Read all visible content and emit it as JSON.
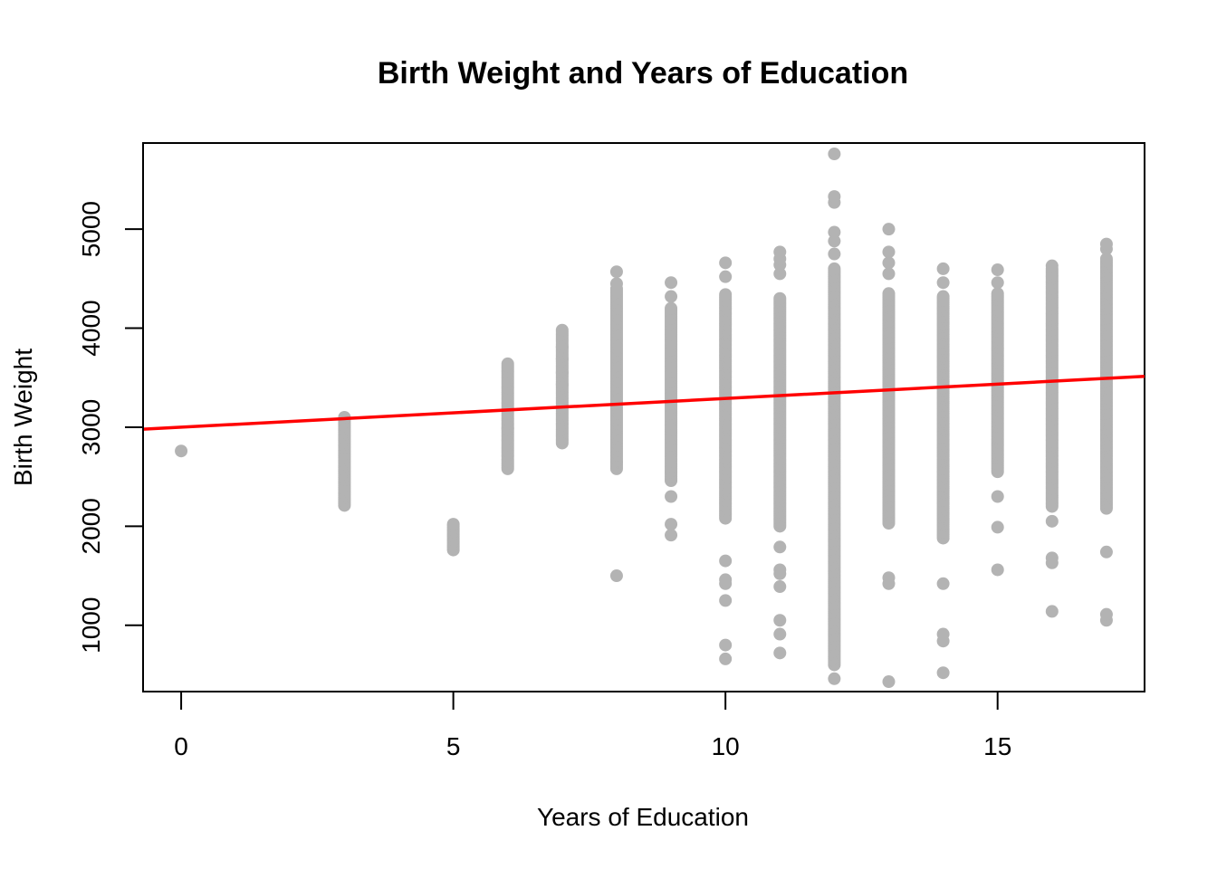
{
  "chart_data": {
    "type": "scatter",
    "title": "Birth Weight and Years of Education",
    "xlabel": "Years of Education",
    "ylabel": "Birth Weight",
    "xlim": [
      -0.7,
      17.7
    ],
    "ylim": [
      330,
      5870
    ],
    "x_ticks": [
      0,
      5,
      10,
      15
    ],
    "x_tick_labels": [
      "0",
      "5",
      "10",
      "15"
    ],
    "y_ticks": [
      1000,
      2000,
      3000,
      4000,
      5000
    ],
    "y_tick_labels": [
      "1000",
      "2000",
      "3000",
      "4000",
      "5000"
    ],
    "point_color": "#b3b3b3",
    "line_color": "#ff0000",
    "regression_line": {
      "intercept": 3000,
      "slope": 29
    },
    "columns": [
      {
        "x": 0,
        "low": 2760,
        "high": 2760,
        "extra": []
      },
      {
        "x": 3,
        "low": 2210,
        "high": 3100,
        "extra": [
          2210,
          3100
        ]
      },
      {
        "x": 5,
        "low": 1760,
        "high": 2020,
        "extra": [
          1760,
          2020
        ]
      },
      {
        "x": 6,
        "low": 2580,
        "high": 3640,
        "extra": [
          2580,
          2990,
          3640
        ]
      },
      {
        "x": 7,
        "low": 2840,
        "high": 3980,
        "extra": [
          2840,
          3080,
          3240,
          3430,
          3550,
          3690,
          3810,
          3980
        ]
      },
      {
        "x": 8,
        "low": 2580,
        "high": 4400,
        "extra": [
          1500,
          2580,
          2650,
          2720,
          4450,
          4570
        ]
      },
      {
        "x": 9,
        "low": 2460,
        "high": 4200,
        "extra": [
          1910,
          2020,
          2300,
          2470,
          2550,
          4320,
          4460
        ]
      },
      {
        "x": 10,
        "low": 2080,
        "high": 4350,
        "extra": [
          660,
          800,
          1250,
          1420,
          1460,
          1650,
          4520,
          4660
        ]
      },
      {
        "x": 11,
        "low": 2000,
        "high": 4300,
        "extra": [
          720,
          910,
          1050,
          1390,
          1520,
          1560,
          1790,
          4550,
          4640,
          4700,
          4770
        ]
      },
      {
        "x": 12,
        "low": 600,
        "high": 4600,
        "extra": [
          460,
          4750,
          4880,
          4970,
          5270,
          5330,
          5760
        ]
      },
      {
        "x": 13,
        "low": 2030,
        "high": 4350,
        "extra": [
          430,
          1420,
          1480,
          4550,
          4660,
          4770,
          5000
        ]
      },
      {
        "x": 14,
        "low": 1880,
        "high": 4330,
        "extra": [
          520,
          840,
          910,
          1420,
          4460,
          4600
        ]
      },
      {
        "x": 15,
        "low": 2550,
        "high": 4350,
        "extra": [
          1560,
          1990,
          2300,
          4460,
          4590
        ]
      },
      {
        "x": 16,
        "low": 2200,
        "high": 4600,
        "extra": [
          1140,
          1630,
          1680,
          2050,
          4630
        ]
      },
      {
        "x": 17,
        "low": 2180,
        "high": 4700,
        "extra": [
          1050,
          1110,
          1740,
          4800,
          4850
        ]
      }
    ]
  }
}
